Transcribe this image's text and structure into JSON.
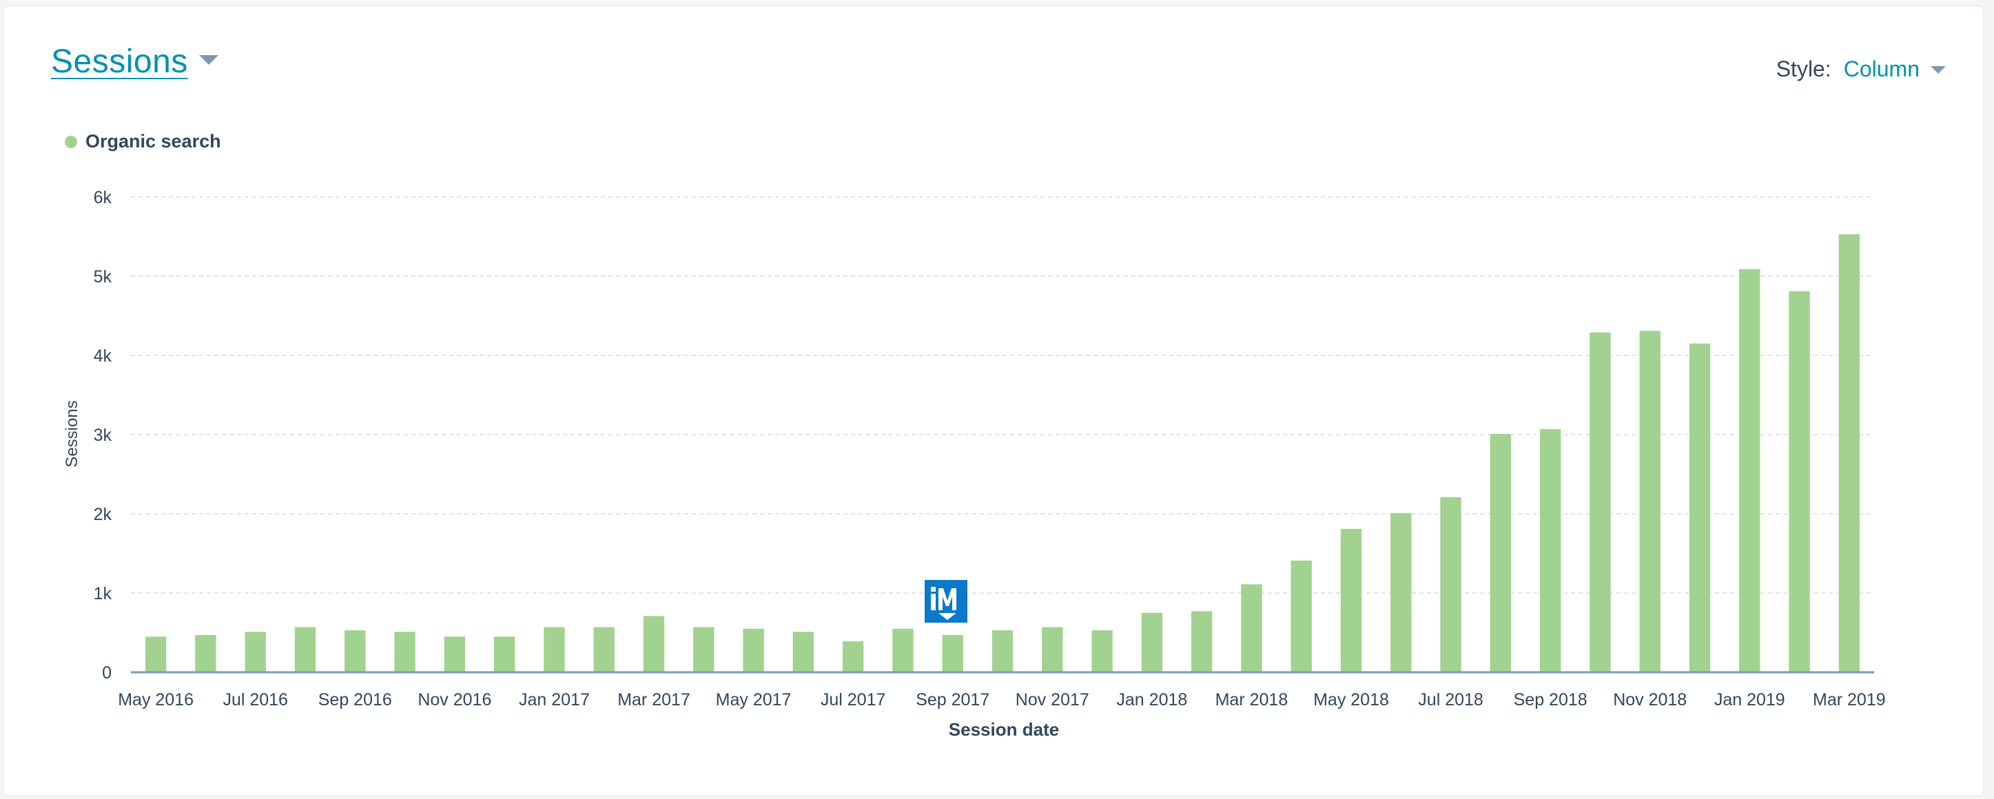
{
  "header": {
    "title": "Sessions",
    "style_label": "Style:",
    "style_value": "Column"
  },
  "chart_data": {
    "type": "bar",
    "title": "",
    "xlabel": "Session date",
    "ylabel": "Sessions",
    "ylim": [
      0,
      6000
    ],
    "y_ticks": [
      "0",
      "1k",
      "2k",
      "3k",
      "4k",
      "5k",
      "6k"
    ],
    "grid": true,
    "legend_position": "top-left",
    "categories": [
      "May 2016",
      "Jun 2016",
      "Jul 2016",
      "Aug 2016",
      "Sep 2016",
      "Oct 2016",
      "Nov 2016",
      "Dec 2016",
      "Jan 2017",
      "Feb 2017",
      "Mar 2017",
      "Apr 2017",
      "May 2017",
      "Jun 2017",
      "Jul 2017",
      "Aug 2017",
      "Sep 2017",
      "Oct 2017",
      "Nov 2017",
      "Dec 2017",
      "Jan 2018",
      "Feb 2018",
      "Mar 2018",
      "Apr 2018",
      "May 2018",
      "Jun 2018",
      "Jul 2018",
      "Aug 2018",
      "Sep 2018",
      "Oct 2018",
      "Nov 2018",
      "Dec 2018",
      "Jan 2019",
      "Feb 2019",
      "Mar 2019"
    ],
    "x_tick_labels": [
      "May 2016",
      "Jul 2016",
      "Sep 2016",
      "Nov 2016",
      "Jan 2017",
      "Mar 2017",
      "May 2017",
      "Jul 2017",
      "Sep 2017",
      "Nov 2017",
      "Jan 2018",
      "Mar 2018",
      "May 2018",
      "Jul 2018",
      "Sep 2018",
      "Nov 2018",
      "Jan 2019",
      "Mar 2019"
    ],
    "series": [
      {
        "name": "Organic search",
        "color": "#a2d28f",
        "values": [
          450,
          470,
          510,
          570,
          530,
          510,
          450,
          450,
          570,
          570,
          710,
          570,
          550,
          510,
          390,
          550,
          470,
          530,
          570,
          530,
          750,
          770,
          1110,
          1410,
          1810,
          2010,
          2210,
          3010,
          3070,
          4290,
          4310,
          4150,
          5090,
          4810,
          5530
        ]
      }
    ]
  },
  "watermark": {
    "icon": "im-logo-icon",
    "color": "#0a79c7"
  }
}
